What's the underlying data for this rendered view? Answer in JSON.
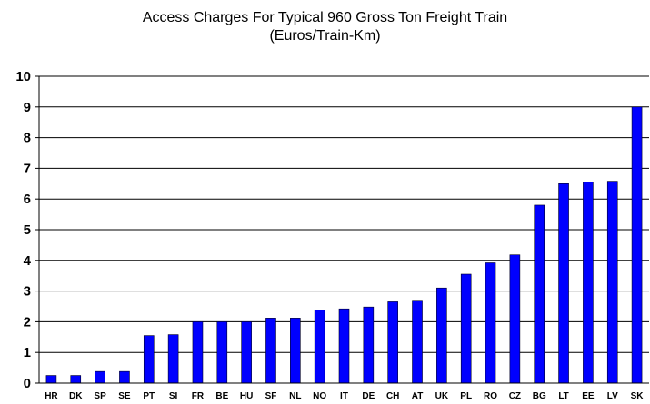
{
  "chart_data": {
    "type": "bar",
    "title": "Access Charges For Typical 960 Gross Ton Freight Train",
    "subtitle": "(Euros/Train-Km)",
    "xlabel": "",
    "ylabel": "",
    "ylim": [
      0,
      10
    ],
    "yticks": [
      0,
      1,
      2,
      3,
      4,
      5,
      6,
      7,
      8,
      9,
      10
    ],
    "grid": true,
    "legend": "none",
    "bar_color": "#0000ff",
    "categories": [
      "HR",
      "DK",
      "SP",
      "SE",
      "PT",
      "SI",
      "FR",
      "BE",
      "HU",
      "SF",
      "NL",
      "NO",
      "IT",
      "DE",
      "CH",
      "AT",
      "UK",
      "PL",
      "RO",
      "CZ",
      "BG",
      "LT",
      "EE",
      "LV",
      "SK"
    ],
    "values": [
      0.25,
      0.25,
      0.38,
      0.38,
      1.55,
      1.58,
      2.0,
      2.0,
      2.0,
      2.12,
      2.12,
      2.38,
      2.42,
      2.48,
      2.65,
      2.7,
      3.1,
      3.55,
      3.92,
      4.18,
      5.8,
      6.5,
      6.55,
      6.58,
      9.0
    ]
  }
}
